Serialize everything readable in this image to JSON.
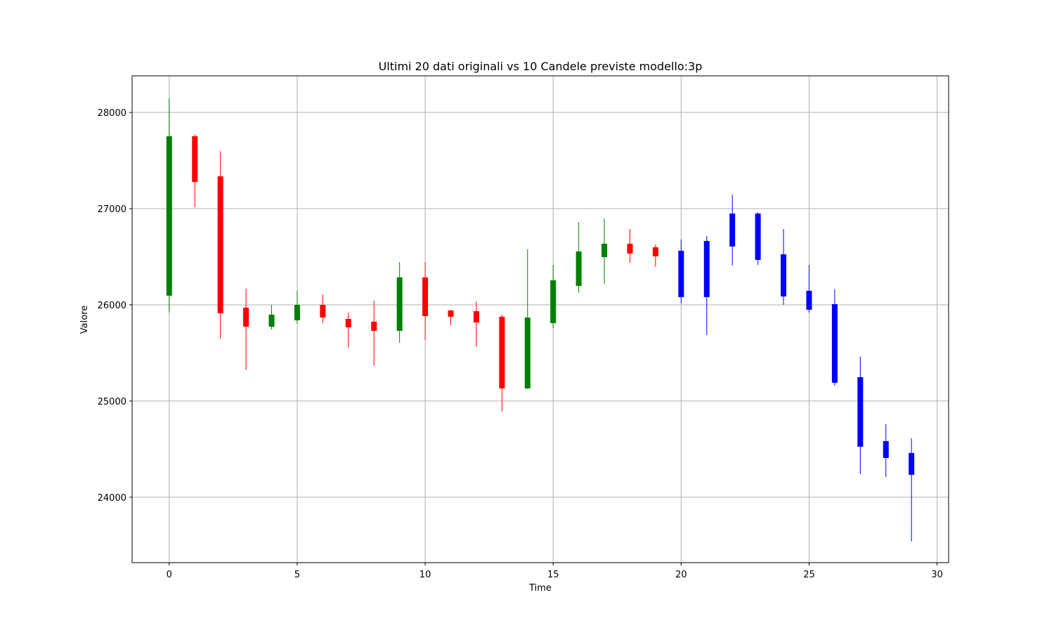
{
  "chart_data": {
    "type": "candlestick",
    "title": "Ultimi 20 dati originali vs 10 Candele previste modello:3p",
    "x_label": "Time",
    "y_label": "Valore",
    "x": [
      0,
      1,
      2,
      3,
      4,
      5,
      6,
      7,
      8,
      9,
      10,
      11,
      12,
      13,
      14,
      15,
      16,
      17,
      18,
      19,
      20,
      21,
      22,
      23,
      24,
      25,
      26,
      27,
      28,
      29
    ],
    "open": [
      26095,
      27752,
      27336,
      25971,
      25773,
      25839,
      26000,
      25854,
      25825,
      25730,
      26285,
      25941,
      25934,
      25876,
      25131,
      25810,
      26197,
      26496,
      26635,
      26598,
      26562,
      26080,
      26606,
      26949,
      26525,
      26146,
      26007,
      25248,
      24584,
      24460
    ],
    "high": [
      28146,
      27774,
      27598,
      26168,
      26000,
      26146,
      26109,
      25920,
      26044,
      26445,
      26445,
      25949,
      26036,
      25898,
      26577,
      26416,
      26861,
      26898,
      26788,
      26628,
      26679,
      26715,
      27146,
      26963,
      26788,
      26416,
      26160,
      25460,
      24759,
      24613
    ],
    "low": [
      25920,
      27015,
      25649,
      25321,
      25744,
      25803,
      25810,
      25555,
      25365,
      25606,
      25635,
      25788,
      25562,
      24890,
      25124,
      25759,
      26124,
      26219,
      26438,
      26394,
      26014,
      25686,
      26409,
      26416,
      26000,
      25920,
      25160,
      24240,
      24211,
      23540
    ],
    "close": [
      27752,
      27277,
      25912,
      25773,
      25898,
      26000,
      25868,
      25766,
      25730,
      26285,
      25883,
      25876,
      25817,
      25131,
      25868,
      26255,
      26555,
      26635,
      26533,
      26504,
      26080,
      26664,
      26949,
      26467,
      26087,
      25949,
      25190,
      24525,
      24408,
      24233
    ],
    "colors": [
      "green",
      "red",
      "red",
      "red",
      "green",
      "green",
      "red",
      "red",
      "red",
      "green",
      "red",
      "red",
      "red",
      "red",
      "green",
      "green",
      "green",
      "green",
      "red",
      "red",
      "blue",
      "blue",
      "blue",
      "blue",
      "blue",
      "blue",
      "blue",
      "blue",
      "blue",
      "blue"
    ],
    "xlim": [
      -1.45,
      30.45
    ],
    "ylim": [
      23320,
      28380
    ],
    "xticks": [
      0,
      5,
      10,
      15,
      20,
      25,
      30
    ],
    "yticks": [
      24000,
      25000,
      26000,
      27000,
      28000
    ],
    "grid": true
  }
}
